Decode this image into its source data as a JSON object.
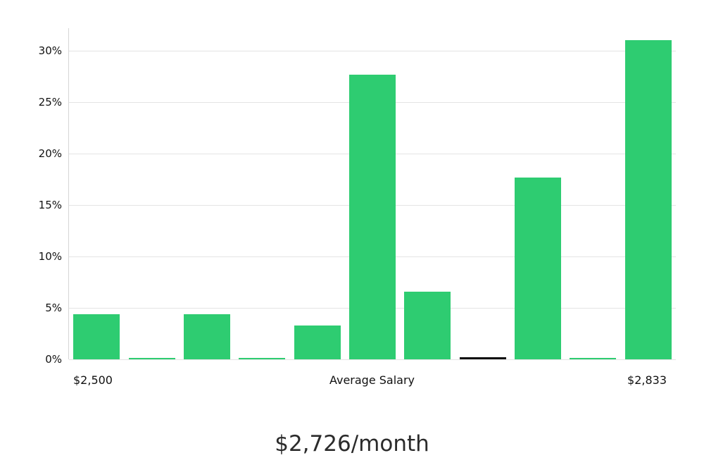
{
  "chart_data": {
    "type": "bar",
    "title": "$2,726/month",
    "values": [
      4.4,
      0.1,
      4.4,
      0.1,
      3.3,
      27.7,
      6.6,
      0.2,
      17.7,
      0.1,
      31.0
    ],
    "bar_colors": [
      "#2ecc71",
      "#2ecc71",
      "#2ecc71",
      "#2ecc71",
      "#2ecc71",
      "#2ecc71",
      "#2ecc71",
      "#111111",
      "#2ecc71",
      "#2ecc71",
      "#2ecc71"
    ],
    "bar_color_default": "#2ecc71",
    "highlight_bar_color": "#111111",
    "ylim": [
      0,
      32.2
    ],
    "yticks": [
      0,
      5,
      10,
      15,
      20,
      25,
      30
    ],
    "ytick_labels": [
      "0%",
      "5%",
      "10%",
      "15%",
      "20%",
      "25%",
      "30%"
    ],
    "x_labels": [
      {
        "text": "$2,500",
        "align": "left"
      },
      {
        "text": "Average Salary",
        "align": "center"
      },
      {
        "text": "$2,833",
        "align": "right"
      }
    ],
    "grid": true,
    "legend": false,
    "xlabel": "",
    "ylabel": ""
  }
}
